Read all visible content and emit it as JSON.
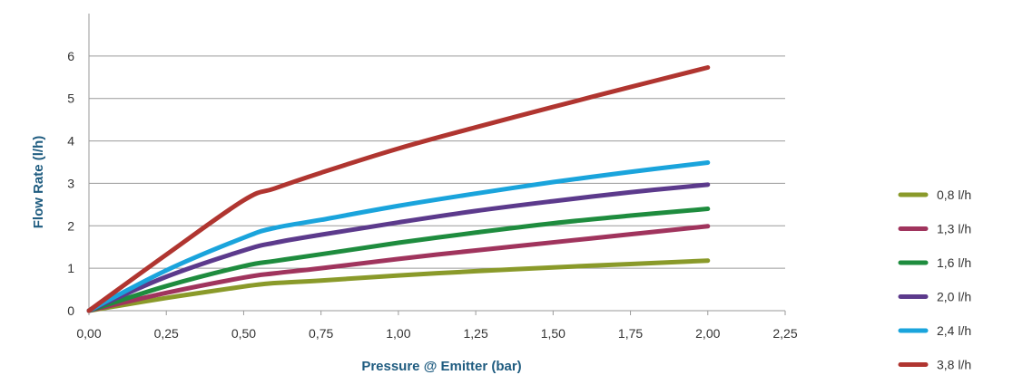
{
  "chart_data": {
    "type": "line",
    "title": "",
    "xlabel": "Pressure @ Emitter (bar)",
    "ylabel": "Flow Rate (l/h)",
    "xlim": [
      0,
      2.25
    ],
    "ylim": [
      0,
      7
    ],
    "x_ticks": [
      "0,00",
      "0,25",
      "0,50",
      "0,75",
      "1,00",
      "1,25",
      "1,50",
      "1,75",
      "2,00",
      "2,25"
    ],
    "x_tick_values": [
      0,
      0.25,
      0.5,
      0.75,
      1.0,
      1.25,
      1.5,
      1.75,
      2.0,
      2.25
    ],
    "y_ticks": [
      "0",
      "1",
      "2",
      "3",
      "4",
      "5",
      "6"
    ],
    "y_tick_values": [
      0,
      1,
      2,
      3,
      4,
      5,
      6
    ],
    "grid": "horizontal",
    "legend_position": "right",
    "series": [
      {
        "name": "0,8 l/h",
        "color": "#8a9a2a",
        "points": [
          [
            0,
            0
          ],
          [
            0.25,
            0.3
          ],
          [
            0.5,
            0.57
          ],
          [
            0.6,
            0.65
          ],
          [
            0.75,
            0.71
          ],
          [
            1.0,
            0.83
          ],
          [
            1.25,
            0.93
          ],
          [
            1.5,
            1.02
          ],
          [
            1.75,
            1.1
          ],
          [
            2.0,
            1.18
          ]
        ]
      },
      {
        "name": "1,3 l/h",
        "color": "#a0345d",
        "points": [
          [
            0,
            0
          ],
          [
            0.25,
            0.42
          ],
          [
            0.5,
            0.78
          ],
          [
            0.6,
            0.88
          ],
          [
            0.75,
            1.0
          ],
          [
            1.0,
            1.22
          ],
          [
            1.25,
            1.42
          ],
          [
            1.5,
            1.61
          ],
          [
            1.75,
            1.8
          ],
          [
            2.0,
            1.99
          ]
        ]
      },
      {
        "name": "1,6 l/h",
        "color": "#1e8c3e",
        "points": [
          [
            0,
            0
          ],
          [
            0.25,
            0.58
          ],
          [
            0.5,
            1.05
          ],
          [
            0.6,
            1.17
          ],
          [
            0.75,
            1.33
          ],
          [
            1.0,
            1.6
          ],
          [
            1.25,
            1.84
          ],
          [
            1.5,
            2.06
          ],
          [
            1.75,
            2.24
          ],
          [
            2.0,
            2.4
          ]
        ]
      },
      {
        "name": "2,0 l/h",
        "color": "#5c3a8c",
        "points": [
          [
            0,
            0
          ],
          [
            0.25,
            0.8
          ],
          [
            0.5,
            1.42
          ],
          [
            0.6,
            1.6
          ],
          [
            0.75,
            1.79
          ],
          [
            1.0,
            2.08
          ],
          [
            1.25,
            2.35
          ],
          [
            1.5,
            2.58
          ],
          [
            1.75,
            2.79
          ],
          [
            2.0,
            2.97
          ]
        ]
      },
      {
        "name": "2,4 l/h",
        "color": "#1aa4dc",
        "points": [
          [
            0,
            0
          ],
          [
            0.25,
            0.95
          ],
          [
            0.5,
            1.72
          ],
          [
            0.6,
            1.95
          ],
          [
            0.75,
            2.14
          ],
          [
            1.0,
            2.47
          ],
          [
            1.25,
            2.76
          ],
          [
            1.5,
            3.03
          ],
          [
            1.75,
            3.27
          ],
          [
            2.0,
            3.49
          ]
        ]
      },
      {
        "name": "3,8 l/h",
        "color": "#b03530",
        "points": [
          [
            0,
            0
          ],
          [
            0.25,
            1.32
          ],
          [
            0.5,
            2.6
          ],
          [
            0.6,
            2.88
          ],
          [
            0.75,
            3.25
          ],
          [
            1.0,
            3.82
          ],
          [
            1.25,
            4.32
          ],
          [
            1.5,
            4.8
          ],
          [
            1.75,
            5.27
          ],
          [
            2.0,
            5.73
          ]
        ]
      }
    ]
  }
}
